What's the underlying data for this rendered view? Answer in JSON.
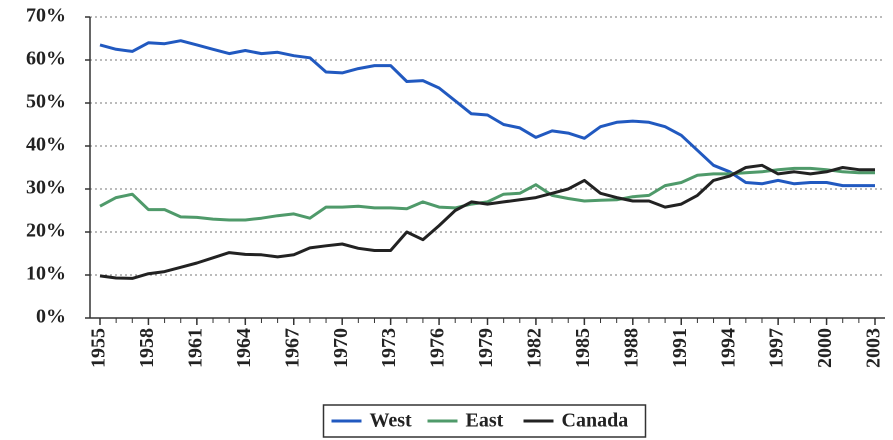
{
  "chart_data": {
    "type": "line",
    "x": [
      1955,
      1956,
      1957,
      1958,
      1959,
      1960,
      1961,
      1962,
      1963,
      1964,
      1965,
      1966,
      1967,
      1968,
      1969,
      1970,
      1971,
      1972,
      1973,
      1974,
      1975,
      1976,
      1977,
      1978,
      1979,
      1980,
      1981,
      1982,
      1983,
      1984,
      1985,
      1986,
      1987,
      1988,
      1989,
      1990,
      1991,
      1992,
      1993,
      1994,
      1995,
      1996,
      1997,
      1998,
      1999,
      2000,
      2001,
      2002,
      2003
    ],
    "series": [
      {
        "name": "West",
        "color": "#2159c0",
        "values": [
          63.5,
          62.5,
          62,
          64,
          63.8,
          64.5,
          63.5,
          62.5,
          61.5,
          62.2,
          61.5,
          61.8,
          61,
          60.5,
          57.2,
          57,
          58,
          58.7,
          58.7,
          55,
          55.2,
          53.5,
          50.5,
          47.5,
          47.2,
          45,
          44.2,
          42,
          43.5,
          43,
          41.8,
          44.5,
          45.5,
          45.8,
          45.5,
          44.5,
          42.5,
          39,
          35.5,
          34,
          31.5,
          31.2,
          32,
          31.2,
          31.5,
          31.5,
          30.8,
          30.8,
          30.8
        ]
      },
      {
        "name": "East",
        "color": "#4f9a6a",
        "values": [
          26,
          28,
          28.8,
          25.2,
          25.2,
          23.5,
          23.4,
          23,
          22.8,
          22.8,
          23.2,
          23.8,
          24.2,
          23.2,
          25.8,
          25.8,
          26,
          25.6,
          25.6,
          25.4,
          27,
          25.8,
          25.6,
          26.5,
          27,
          28.8,
          29,
          31,
          28.5,
          27.8,
          27.2,
          27.4,
          27.5,
          28.2,
          28.5,
          30.8,
          31.5,
          33.2,
          33.5,
          33.5,
          33.8,
          34,
          34.5,
          34.8,
          34.8,
          34.5,
          34,
          33.8,
          33.8
        ]
      },
      {
        "name": "Canada",
        "color": "#222222",
        "values": [
          9.8,
          9.3,
          9.2,
          10.3,
          10.8,
          11.8,
          12.8,
          14,
          15.2,
          14.8,
          14.7,
          14.2,
          14.7,
          16.3,
          16.8,
          17.2,
          16.2,
          15.7,
          15.7,
          20,
          18.2,
          21.5,
          25,
          27,
          26.5,
          27,
          27.5,
          28,
          29,
          30,
          32,
          29,
          28,
          27.2,
          27.2,
          25.8,
          26.5,
          28.5,
          32,
          33,
          35,
          35.5,
          33.5,
          34,
          33.5,
          34,
          35,
          34.5,
          34.5
        ]
      }
    ],
    "xlim": [
      1955,
      2003
    ],
    "xticks": [
      1955,
      1958,
      1961,
      1964,
      1967,
      1970,
      1973,
      1976,
      1979,
      1982,
      1985,
      1988,
      1991,
      1994,
      1997,
      2000,
      2003
    ],
    "ylim": [
      0,
      70
    ],
    "yticks": [
      {
        "value": 0,
        "label": "0%"
      },
      {
        "value": 10,
        "label": "10%"
      },
      {
        "value": 20,
        "label": "20%"
      },
      {
        "value": 30,
        "label": "30%"
      },
      {
        "value": 40,
        "label": "40%"
      },
      {
        "value": 50,
        "label": "50%"
      },
      {
        "value": 60,
        "label": "60%"
      },
      {
        "value": 70,
        "label": "70%"
      }
    ],
    "grid": true,
    "legend": "bottom"
  }
}
